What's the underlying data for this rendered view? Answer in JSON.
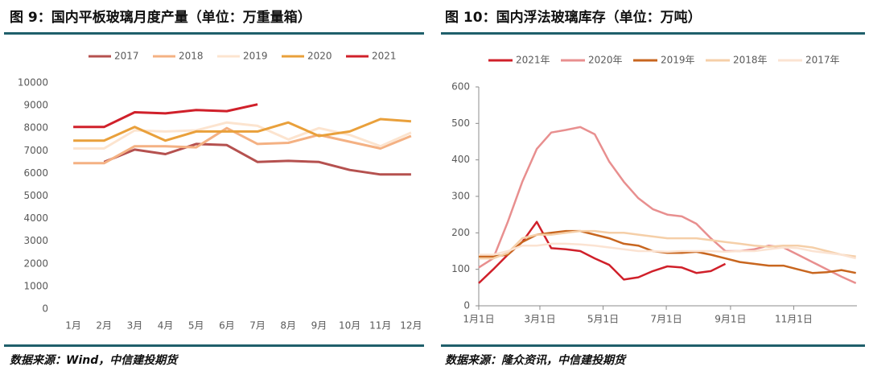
{
  "chart_data": [
    {
      "type": "line",
      "title": "图 9：国内平板玻璃月度产量（单位：万重量箱）",
      "source": "数据来源：Wind，中信建投期货",
      "categories": [
        "1月",
        "2月",
        "3月",
        "4月",
        "5月",
        "6月",
        "7月",
        "8月",
        "9月",
        "10月",
        "11月",
        "12月"
      ],
      "ylim": [
        0,
        10000
      ],
      "yticks": [
        0,
        1000,
        2000,
        3000,
        4000,
        5000,
        6000,
        7000,
        8000,
        9000,
        10000
      ],
      "series": [
        {
          "name": "2017",
          "color": "#b5514f",
          "values": [
            null,
            6500,
            7050,
            6850,
            7300,
            7250,
            6500,
            6550,
            6500,
            6150,
            5950,
            5950
          ]
        },
        {
          "name": "2018",
          "color": "#f4b183",
          "values": [
            6450,
            6450,
            7200,
            7200,
            7150,
            8000,
            7300,
            7350,
            7700,
            7400,
            7100,
            7650
          ]
        },
        {
          "name": "2019",
          "color": "#fce4cf",
          "values": [
            7100,
            7100,
            7900,
            7850,
            7900,
            8250,
            8100,
            7500,
            8000,
            7700,
            7200,
            7800
          ]
        },
        {
          "name": "2020",
          "color": "#e9a03b",
          "values": [
            7450,
            7450,
            8050,
            7450,
            7850,
            7850,
            7850,
            8250,
            7650,
            7850,
            8400,
            8300
          ]
        },
        {
          "name": "2021",
          "color": "#d0202a",
          "values": [
            8050,
            8050,
            8700,
            8650,
            8800,
            8750,
            9050,
            null,
            null,
            null,
            null,
            null
          ]
        }
      ]
    },
    {
      "type": "line",
      "title": "图 10：国内浮法玻璃库存（单位：万吨）",
      "source": "数据来源：隆众资讯，中信建投期货",
      "x": [
        0,
        14,
        28,
        42,
        56,
        70,
        84,
        98,
        112,
        126,
        140,
        154,
        168,
        182,
        196,
        210,
        224,
        238,
        252,
        266,
        280,
        294,
        308,
        322,
        336,
        350,
        364
      ],
      "xlim": [
        0,
        365
      ],
      "xticks": [
        {
          "value": 0,
          "label": "1月1日"
        },
        {
          "value": 59,
          "label": "3月1日"
        },
        {
          "value": 120,
          "label": "5月1日"
        },
        {
          "value": 181,
          "label": "7月1日"
        },
        {
          "value": 243,
          "label": "9月1日"
        },
        {
          "value": 304,
          "label": "11月1日"
        }
      ],
      "ylim": [
        0,
        600
      ],
      "yticks": [
        0,
        100,
        200,
        300,
        400,
        500,
        600
      ],
      "series": [
        {
          "name": "2021年",
          "color": "#d0202a",
          "values": [
            62,
            100,
            140,
            175,
            230,
            158,
            155,
            150,
            130,
            112,
            72,
            78,
            95,
            108,
            105,
            90,
            95,
            115,
            null,
            null,
            null,
            null,
            null,
            null,
            null,
            null,
            null
          ]
        },
        {
          "name": "2020年",
          "color": "#e88f8f",
          "values": [
            105,
            130,
            230,
            340,
            430,
            475,
            482,
            490,
            470,
            395,
            340,
            295,
            265,
            250,
            245,
            225,
            185,
            150,
            150,
            155,
            165,
            160,
            140,
            120,
            100,
            80,
            62
          ]
        },
        {
          "name": "2019年",
          "color": "#c8661f",
          "values": [
            135,
            135,
            140,
            175,
            195,
            200,
            205,
            205,
            195,
            185,
            170,
            165,
            150,
            145,
            145,
            148,
            140,
            130,
            120,
            115,
            110,
            110,
            100,
            90,
            92,
            98,
            90
          ]
        },
        {
          "name": "2018年",
          "color": "#f5cfa8",
          "values": [
            130,
            130,
            145,
            185,
            195,
            195,
            200,
            205,
            205,
            200,
            200,
            195,
            190,
            185,
            185,
            185,
            180,
            175,
            170,
            165,
            162,
            165,
            165,
            160,
            150,
            140,
            135
          ]
        },
        {
          "name": "2017年",
          "color": "#fbe3d2",
          "values": [
            140,
            140,
            150,
            165,
            165,
            170,
            170,
            168,
            165,
            160,
            155,
            150,
            150,
            148,
            150,
            150,
            150,
            148,
            150,
            150,
            155,
            160,
            158,
            150,
            145,
            140,
            130
          ]
        }
      ]
    }
  ]
}
